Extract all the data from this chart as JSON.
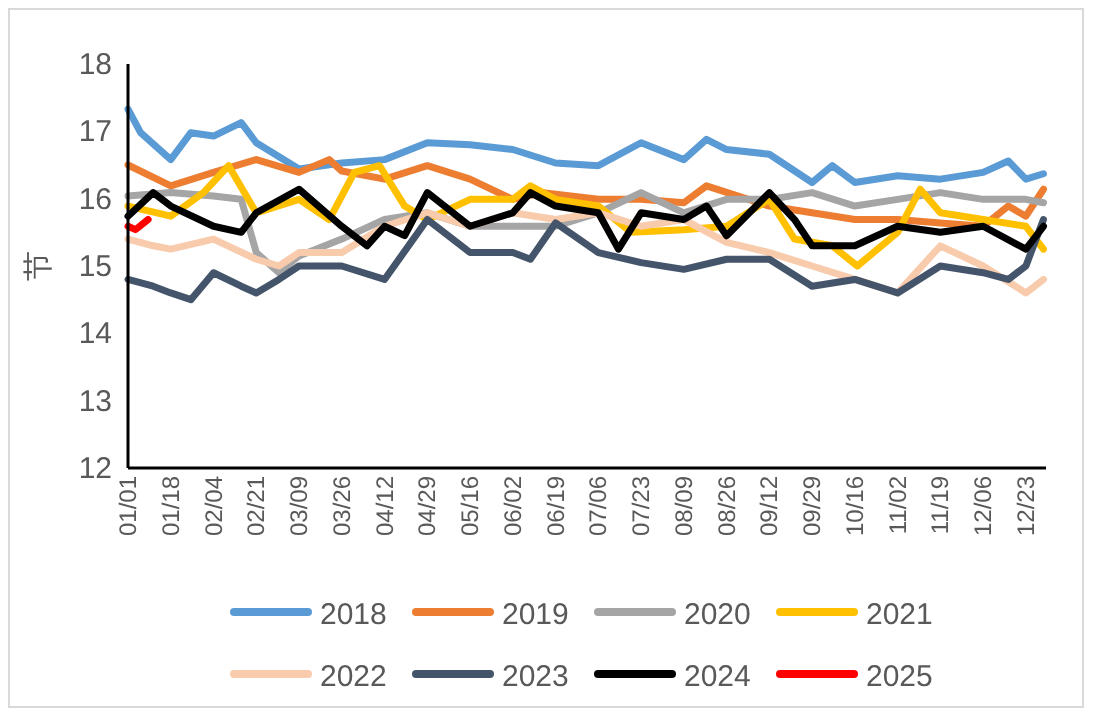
{
  "chart_data": {
    "type": "line",
    "ylabel": "节",
    "legend": "bottom",
    "xlim": [
      "--01-01",
      "--12-31"
    ],
    "ylim": [
      12,
      18
    ],
    "yticks": [
      12,
      13,
      14,
      15,
      16,
      17,
      18
    ],
    "xticks": [
      {
        "value": "--01-01",
        "label": "01/01"
      },
      {
        "value": "--01-18",
        "label": "01/18"
      },
      {
        "value": "--02-04",
        "label": "02/04"
      },
      {
        "value": "--02-21",
        "label": "02/21"
      },
      {
        "value": "--03-09",
        "label": "03/09"
      },
      {
        "value": "--03-26",
        "label": "03/26"
      },
      {
        "value": "--04-12",
        "label": "04/12"
      },
      {
        "value": "--04-29",
        "label": "04/29"
      },
      {
        "value": "--05-16",
        "label": "05/16"
      },
      {
        "value": "--06-02",
        "label": "06/02"
      },
      {
        "value": "--06-19",
        "label": "06/19"
      },
      {
        "value": "--07-06",
        "label": "07/06"
      },
      {
        "value": "--07-23",
        "label": "07/23"
      },
      {
        "value": "--08-09",
        "label": "08/09"
      },
      {
        "value": "--08-26",
        "label": "08/26"
      },
      {
        "value": "--09-12",
        "label": "09/12"
      },
      {
        "value": "--09-29",
        "label": "09/29"
      },
      {
        "value": "--10-16",
        "label": "10/16"
      },
      {
        "value": "--11-02",
        "label": "11/02"
      },
      {
        "value": "--11-19",
        "label": "11/19"
      },
      {
        "value": "--12-06",
        "label": "12/06"
      },
      {
        "value": "--12-23",
        "label": "12/23"
      }
    ],
    "series": [
      {
        "name": "2018",
        "color": "#5b9bd5",
        "x": [
          "--01-01",
          "--01-06",
          "--01-18",
          "--01-26",
          "--02-04",
          "--02-15",
          "--02-21",
          "--03-09",
          "--03-26",
          "--04-12",
          "--04-29",
          "--05-16",
          "--06-02",
          "--06-19",
          "--07-06",
          "--07-23",
          "--08-09",
          "--08-18",
          "--08-26",
          "--09-12",
          "--09-29",
          "--10-07",
          "--10-16",
          "--11-02",
          "--11-19",
          "--12-06",
          "--12-16",
          "--12-23",
          "--12-30"
        ],
        "values": [
          17.33,
          16.98,
          16.58,
          16.98,
          16.93,
          17.13,
          16.83,
          16.44,
          16.53,
          16.58,
          16.83,
          16.8,
          16.73,
          16.53,
          16.49,
          16.83,
          16.58,
          16.88,
          16.73,
          16.66,
          16.24,
          16.49,
          16.24,
          16.34,
          16.29,
          16.39,
          16.56,
          16.29,
          16.37
        ]
      },
      {
        "name": "2019",
        "color": "#ed7d31",
        "x": [
          "--01-01",
          "--01-18",
          "--02-04",
          "--02-21",
          "--03-09",
          "--03-21",
          "--03-26",
          "--04-12",
          "--04-29",
          "--05-16",
          "--06-02",
          "--06-14",
          "--07-06",
          "--07-23",
          "--08-09",
          "--08-18",
          "--09-12",
          "--09-29",
          "--10-16",
          "--11-02",
          "--11-19",
          "--12-06",
          "--12-16",
          "--12-23",
          "--12-30"
        ],
        "values": [
          16.5,
          16.19,
          16.39,
          16.58,
          16.39,
          16.58,
          16.41,
          16.29,
          16.49,
          16.29,
          15.99,
          16.09,
          15.99,
          15.99,
          15.94,
          16.19,
          15.89,
          15.79,
          15.69,
          15.69,
          15.64,
          15.59,
          15.89,
          15.74,
          16.14
        ]
      },
      {
        "name": "2020",
        "color": "#a5a5a5",
        "x": [
          "--01-01",
          "--01-18",
          "--02-04",
          "--02-15",
          "--02-21",
          "--03-01",
          "--03-09",
          "--03-26",
          "--04-12",
          "--04-29",
          "--05-16",
          "--06-02",
          "--06-19",
          "--07-06",
          "--07-23",
          "--08-09",
          "--08-26",
          "--09-12",
          "--09-29",
          "--10-16",
          "--11-02",
          "--11-19",
          "--12-06",
          "--12-23",
          "--12-30"
        ],
        "values": [
          16.04,
          16.09,
          16.04,
          15.99,
          15.2,
          14.9,
          15.15,
          15.4,
          15.69,
          15.79,
          15.59,
          15.59,
          15.59,
          15.79,
          16.09,
          15.79,
          15.99,
          15.99,
          16.09,
          15.89,
          15.99,
          16.09,
          15.99,
          15.99,
          15.94
        ]
      },
      {
        "name": "2021",
        "color": "#ffc000",
        "x": [
          "--01-01",
          "--01-18",
          "--01-31",
          "--02-10",
          "--02-21",
          "--03-09",
          "--03-21",
          "--03-31",
          "--04-10",
          "--04-20",
          "--04-29",
          "--05-16",
          "--06-02",
          "--06-09",
          "--06-19",
          "--07-06",
          "--07-19",
          "--08-09",
          "--08-26",
          "--09-12",
          "--09-22",
          "--10-07",
          "--10-17",
          "--11-02",
          "--11-11",
          "--11-19",
          "--12-06",
          "--12-23",
          "--12-30"
        ],
        "values": [
          15.89,
          15.74,
          16.09,
          16.49,
          15.79,
          15.99,
          15.69,
          16.39,
          16.49,
          15.89,
          15.69,
          15.99,
          15.99,
          16.19,
          15.99,
          15.89,
          15.5,
          15.54,
          15.59,
          15.99,
          15.4,
          15.3,
          15.0,
          15.5,
          16.14,
          15.79,
          15.69,
          15.59,
          15.25
        ]
      },
      {
        "name": "2022",
        "color": "#f8cbad",
        "x": [
          "--01-01",
          "--01-11",
          "--01-18",
          "--02-04",
          "--02-21",
          "--03-01",
          "--03-09",
          "--03-26",
          "--04-12",
          "--04-29",
          "--05-16",
          "--06-02",
          "--06-19",
          "--07-06",
          "--07-23",
          "--08-09",
          "--08-26",
          "--09-12",
          "--09-29",
          "--10-16",
          "--11-02",
          "--11-19",
          "--12-06",
          "--12-23",
          "--12-30"
        ],
        "values": [
          15.4,
          15.3,
          15.25,
          15.4,
          15.1,
          15.0,
          15.2,
          15.2,
          15.59,
          15.79,
          15.59,
          15.79,
          15.69,
          15.79,
          15.59,
          15.69,
          15.35,
          15.2,
          15.0,
          14.8,
          14.6,
          15.3,
          15.0,
          14.6,
          14.8
        ]
      },
      {
        "name": "2023",
        "color": "#44546a",
        "x": [
          "--01-01",
          "--01-11",
          "--01-18",
          "--01-26",
          "--02-04",
          "--02-15",
          "--02-21",
          "--03-01",
          "--03-09",
          "--03-26",
          "--04-12",
          "--04-29",
          "--05-16",
          "--06-02",
          "--06-09",
          "--06-19",
          "--07-06",
          "--07-23",
          "--08-09",
          "--08-26",
          "--09-12",
          "--09-29",
          "--10-16",
          "--11-02",
          "--11-19",
          "--12-06",
          "--12-16",
          "--12-23",
          "--12-30"
        ],
        "values": [
          14.8,
          14.7,
          14.6,
          14.5,
          14.9,
          14.7,
          14.6,
          14.8,
          15.0,
          15.0,
          14.8,
          15.69,
          15.2,
          15.2,
          15.1,
          15.64,
          15.2,
          15.05,
          14.95,
          15.1,
          15.1,
          14.7,
          14.8,
          14.6,
          15.0,
          14.9,
          14.8,
          15.0,
          15.69
        ]
      },
      {
        "name": "2024",
        "color": "#000000",
        "x": [
          "--01-01",
          "--01-11",
          "--01-18",
          "--02-04",
          "--02-15",
          "--02-21",
          "--03-09",
          "--03-26",
          "--04-05",
          "--04-12",
          "--04-20",
          "--04-29",
          "--05-16",
          "--06-02",
          "--06-09",
          "--06-19",
          "--07-06",
          "--07-14",
          "--07-23",
          "--08-09",
          "--08-18",
          "--08-26",
          "--09-12",
          "--09-22",
          "--09-29",
          "--10-16",
          "--11-02",
          "--11-19",
          "--12-06",
          "--12-23",
          "--12-30"
        ],
        "values": [
          15.74,
          16.09,
          15.89,
          15.59,
          15.5,
          15.79,
          16.14,
          15.59,
          15.3,
          15.59,
          15.45,
          16.09,
          15.59,
          15.79,
          16.09,
          15.89,
          15.79,
          15.25,
          15.79,
          15.69,
          15.89,
          15.45,
          16.09,
          15.69,
          15.3,
          15.3,
          15.59,
          15.5,
          15.59,
          15.25,
          15.59
        ]
      },
      {
        "name": "2025",
        "color": "#ff0000",
        "x": [
          "--01-01",
          "--01-04",
          "--01-09"
        ],
        "values": [
          15.59,
          15.54,
          15.69
        ]
      }
    ]
  }
}
